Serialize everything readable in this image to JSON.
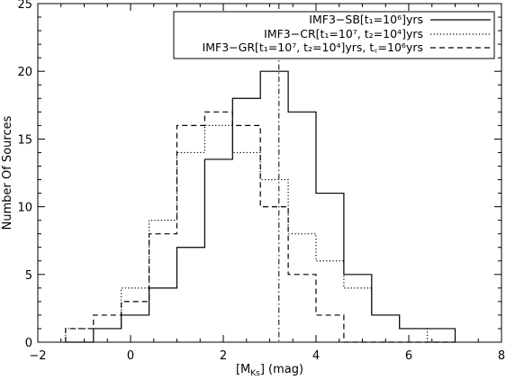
{
  "chart_data": {
    "type": "line",
    "xlabel": "[M",
    "xlabel_sub": "Ks",
    "xlabel_tail": "] (mag)",
    "ylabel": "Number Of Sources",
    "xlim": [
      -2,
      8
    ],
    "ylim": [
      0,
      25
    ],
    "xticks": [
      -2,
      0,
      2,
      4,
      6,
      8
    ],
    "yticks": [
      0,
      5,
      10,
      15,
      20,
      25
    ],
    "xtick_labels": [
      "−2",
      "0",
      "2",
      "4",
      "6",
      "8"
    ],
    "ytick_labels": [
      "0",
      "5",
      "10",
      "15",
      "20",
      "25"
    ],
    "vline": {
      "x": 3.2,
      "style": "dash-dot"
    },
    "legend_position": "top-right",
    "bin_edges": [
      -1.4,
      -0.8,
      -0.2,
      0.4,
      1.0,
      1.6,
      2.2,
      2.8,
      3.4,
      4.0,
      4.6,
      5.2,
      5.8,
      6.4,
      7.0
    ],
    "series": [
      {
        "style": "solid",
        "legend_text": "IMF3−SB[t₁=10⁶]yrs",
        "values": [
          0,
          1,
          2,
          4,
          7,
          13.5,
          18,
          20,
          17,
          11,
          5,
          2,
          1,
          1
        ]
      },
      {
        "style": "dotted",
        "legend_text": "IMF3−CR[t₁=10⁷, t₂=10⁴]yrs",
        "values": [
          1,
          1,
          4,
          9,
          14,
          16,
          14,
          12,
          8,
          6,
          4,
          2,
          1,
          0
        ]
      },
      {
        "style": "dashed",
        "legend_text": "IMF3−GR[t₁=10⁷, t₂=10⁴]yrs, t꜀=10⁶yrs",
        "values": [
          1,
          2,
          3,
          8,
          16,
          17,
          16,
          10,
          5,
          2,
          0,
          0,
          0,
          0
        ]
      }
    ]
  }
}
